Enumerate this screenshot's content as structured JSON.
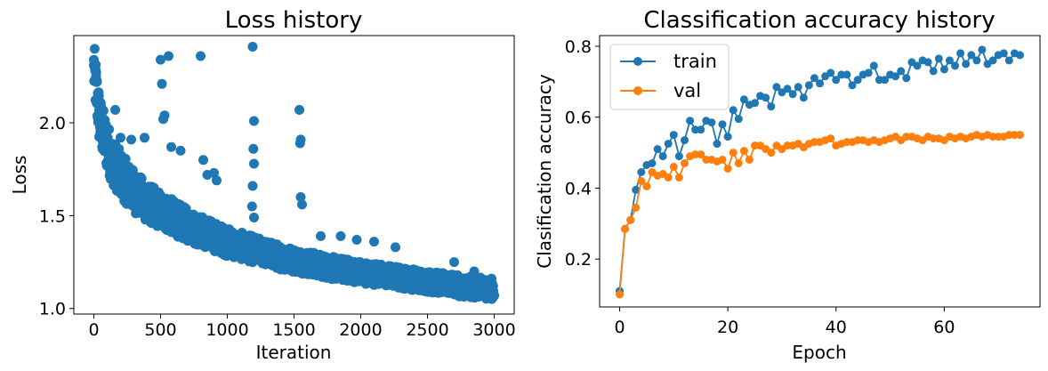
{
  "colors": {
    "train": "#1f77b4",
    "val": "#ff7f0e"
  },
  "chart_data": [
    {
      "type": "scatter",
      "title": "Loss history",
      "xlabel": "Iteration",
      "ylabel": "Loss",
      "xlim": [
        -150,
        3150
      ],
      "ylim": [
        0.97,
        2.47
      ],
      "xticks": [
        "0",
        "500",
        "1000",
        "1500",
        "2000",
        "2500",
        "3000"
      ],
      "yticks": [
        "1.0",
        "1.5",
        "2.0"
      ],
      "grid": false,
      "trend": [
        [
          0,
          2.28
        ],
        [
          20,
          2.15
        ],
        [
          40,
          2.02
        ],
        [
          60,
          1.95
        ],
        [
          100,
          1.86
        ],
        [
          150,
          1.77
        ],
        [
          200,
          1.71
        ],
        [
          300,
          1.62
        ],
        [
          400,
          1.56
        ],
        [
          500,
          1.52
        ],
        [
          600,
          1.48
        ],
        [
          700,
          1.44
        ],
        [
          800,
          1.41
        ],
        [
          900,
          1.38
        ],
        [
          1000,
          1.35
        ],
        [
          1200,
          1.31
        ],
        [
          1400,
          1.27
        ],
        [
          1600,
          1.24
        ],
        [
          1800,
          1.21
        ],
        [
          2000,
          1.19
        ],
        [
          2200,
          1.17
        ],
        [
          2400,
          1.15
        ],
        [
          2600,
          1.13
        ],
        [
          2800,
          1.11
        ],
        [
          3000,
          1.1
        ]
      ],
      "outliers": [
        [
          0,
          2.31
        ],
        [
          10,
          2.3
        ],
        [
          15,
          2.28
        ],
        [
          20,
          2.22
        ],
        [
          30,
          2.16
        ],
        [
          40,
          2.07
        ],
        [
          60,
          2.03
        ],
        [
          80,
          2.0
        ],
        [
          100,
          1.96
        ],
        [
          160,
          2.07
        ],
        [
          200,
          1.92
        ],
        [
          280,
          1.91
        ],
        [
          380,
          1.92
        ],
        [
          500,
          2.34
        ],
        [
          510,
          2.21
        ],
        [
          520,
          2.02
        ],
        [
          530,
          2.04
        ],
        [
          560,
          2.36
        ],
        [
          580,
          1.87
        ],
        [
          650,
          1.85
        ],
        [
          800,
          2.36
        ],
        [
          820,
          1.8
        ],
        [
          850,
          1.72
        ],
        [
          900,
          1.73
        ],
        [
          920,
          1.69
        ],
        [
          1190,
          2.41
        ],
        [
          1200,
          2.01
        ],
        [
          1195,
          1.86
        ],
        [
          1200,
          1.78
        ],
        [
          1190,
          1.66
        ],
        [
          1185,
          1.55
        ],
        [
          1200,
          1.49
        ],
        [
          1540,
          2.07
        ],
        [
          1550,
          1.91
        ],
        [
          1545,
          1.89
        ],
        [
          1550,
          1.6
        ],
        [
          1560,
          1.56
        ],
        [
          1700,
          1.39
        ],
        [
          1850,
          1.39
        ],
        [
          1970,
          1.37
        ],
        [
          2100,
          1.36
        ],
        [
          2260,
          1.33
        ],
        [
          2700,
          1.25
        ],
        [
          2850,
          1.2
        ]
      ]
    },
    {
      "type": "line",
      "title": "Classification accuracy history",
      "xlabel": "Epoch",
      "ylabel": "Clasification accuracy",
      "xlim": [
        -3.7,
        77.7
      ],
      "ylim": [
        0.065,
        0.83
      ],
      "xticks": [
        "0",
        "20",
        "40",
        "60"
      ],
      "yticks": [
        "0.2",
        "0.4",
        "0.6",
        "0.8"
      ],
      "legend_position": "top-left",
      "grid": false,
      "x": [
        0,
        1,
        2,
        3,
        4,
        5,
        6,
        7,
        8,
        9,
        10,
        11,
        12,
        13,
        14,
        15,
        16,
        17,
        18,
        19,
        20,
        21,
        22,
        23,
        24,
        25,
        26,
        27,
        28,
        29,
        30,
        31,
        32,
        33,
        34,
        35,
        36,
        37,
        38,
        39,
        40,
        41,
        42,
        43,
        44,
        45,
        46,
        47,
        48,
        49,
        50,
        51,
        52,
        53,
        54,
        55,
        56,
        57,
        58,
        59,
        60,
        61,
        62,
        63,
        64,
        65,
        66,
        67,
        68,
        69,
        70,
        71,
        72,
        73,
        74
      ],
      "series": [
        {
          "name": "train",
          "values": [
            0.11,
            0.285,
            0.31,
            0.395,
            0.445,
            0.465,
            0.47,
            0.51,
            0.49,
            0.525,
            0.55,
            0.49,
            0.535,
            0.59,
            0.565,
            0.565,
            0.59,
            0.585,
            0.525,
            0.58,
            0.545,
            0.62,
            0.595,
            0.65,
            0.635,
            0.64,
            0.66,
            0.655,
            0.63,
            0.685,
            0.67,
            0.68,
            0.665,
            0.685,
            0.655,
            0.69,
            0.71,
            0.695,
            0.715,
            0.725,
            0.705,
            0.72,
            0.72,
            0.69,
            0.705,
            0.72,
            0.725,
            0.745,
            0.705,
            0.705,
            0.72,
            0.715,
            0.73,
            0.71,
            0.755,
            0.745,
            0.76,
            0.755,
            0.73,
            0.765,
            0.735,
            0.76,
            0.745,
            0.78,
            0.75,
            0.775,
            0.76,
            0.79,
            0.75,
            0.76,
            0.775,
            0.78,
            0.76,
            0.78,
            0.775
          ]
        },
        {
          "name": "val",
          "values": [
            0.1,
            0.285,
            0.31,
            0.345,
            0.42,
            0.405,
            0.445,
            0.435,
            0.44,
            0.43,
            0.46,
            0.43,
            0.47,
            0.49,
            0.495,
            0.495,
            0.48,
            0.48,
            0.475,
            0.48,
            0.455,
            0.5,
            0.47,
            0.505,
            0.48,
            0.52,
            0.52,
            0.51,
            0.5,
            0.52,
            0.51,
            0.52,
            0.52,
            0.525,
            0.515,
            0.525,
            0.53,
            0.53,
            0.535,
            0.54,
            0.52,
            0.525,
            0.53,
            0.53,
            0.535,
            0.535,
            0.53,
            0.535,
            0.53,
            0.535,
            0.54,
            0.545,
            0.535,
            0.545,
            0.545,
            0.54,
            0.535,
            0.545,
            0.54,
            0.54,
            0.535,
            0.545,
            0.54,
            0.545,
            0.54,
            0.545,
            0.55,
            0.545,
            0.55,
            0.545,
            0.545,
            0.545,
            0.55,
            0.55,
            0.55
          ]
        }
      ]
    }
  ]
}
